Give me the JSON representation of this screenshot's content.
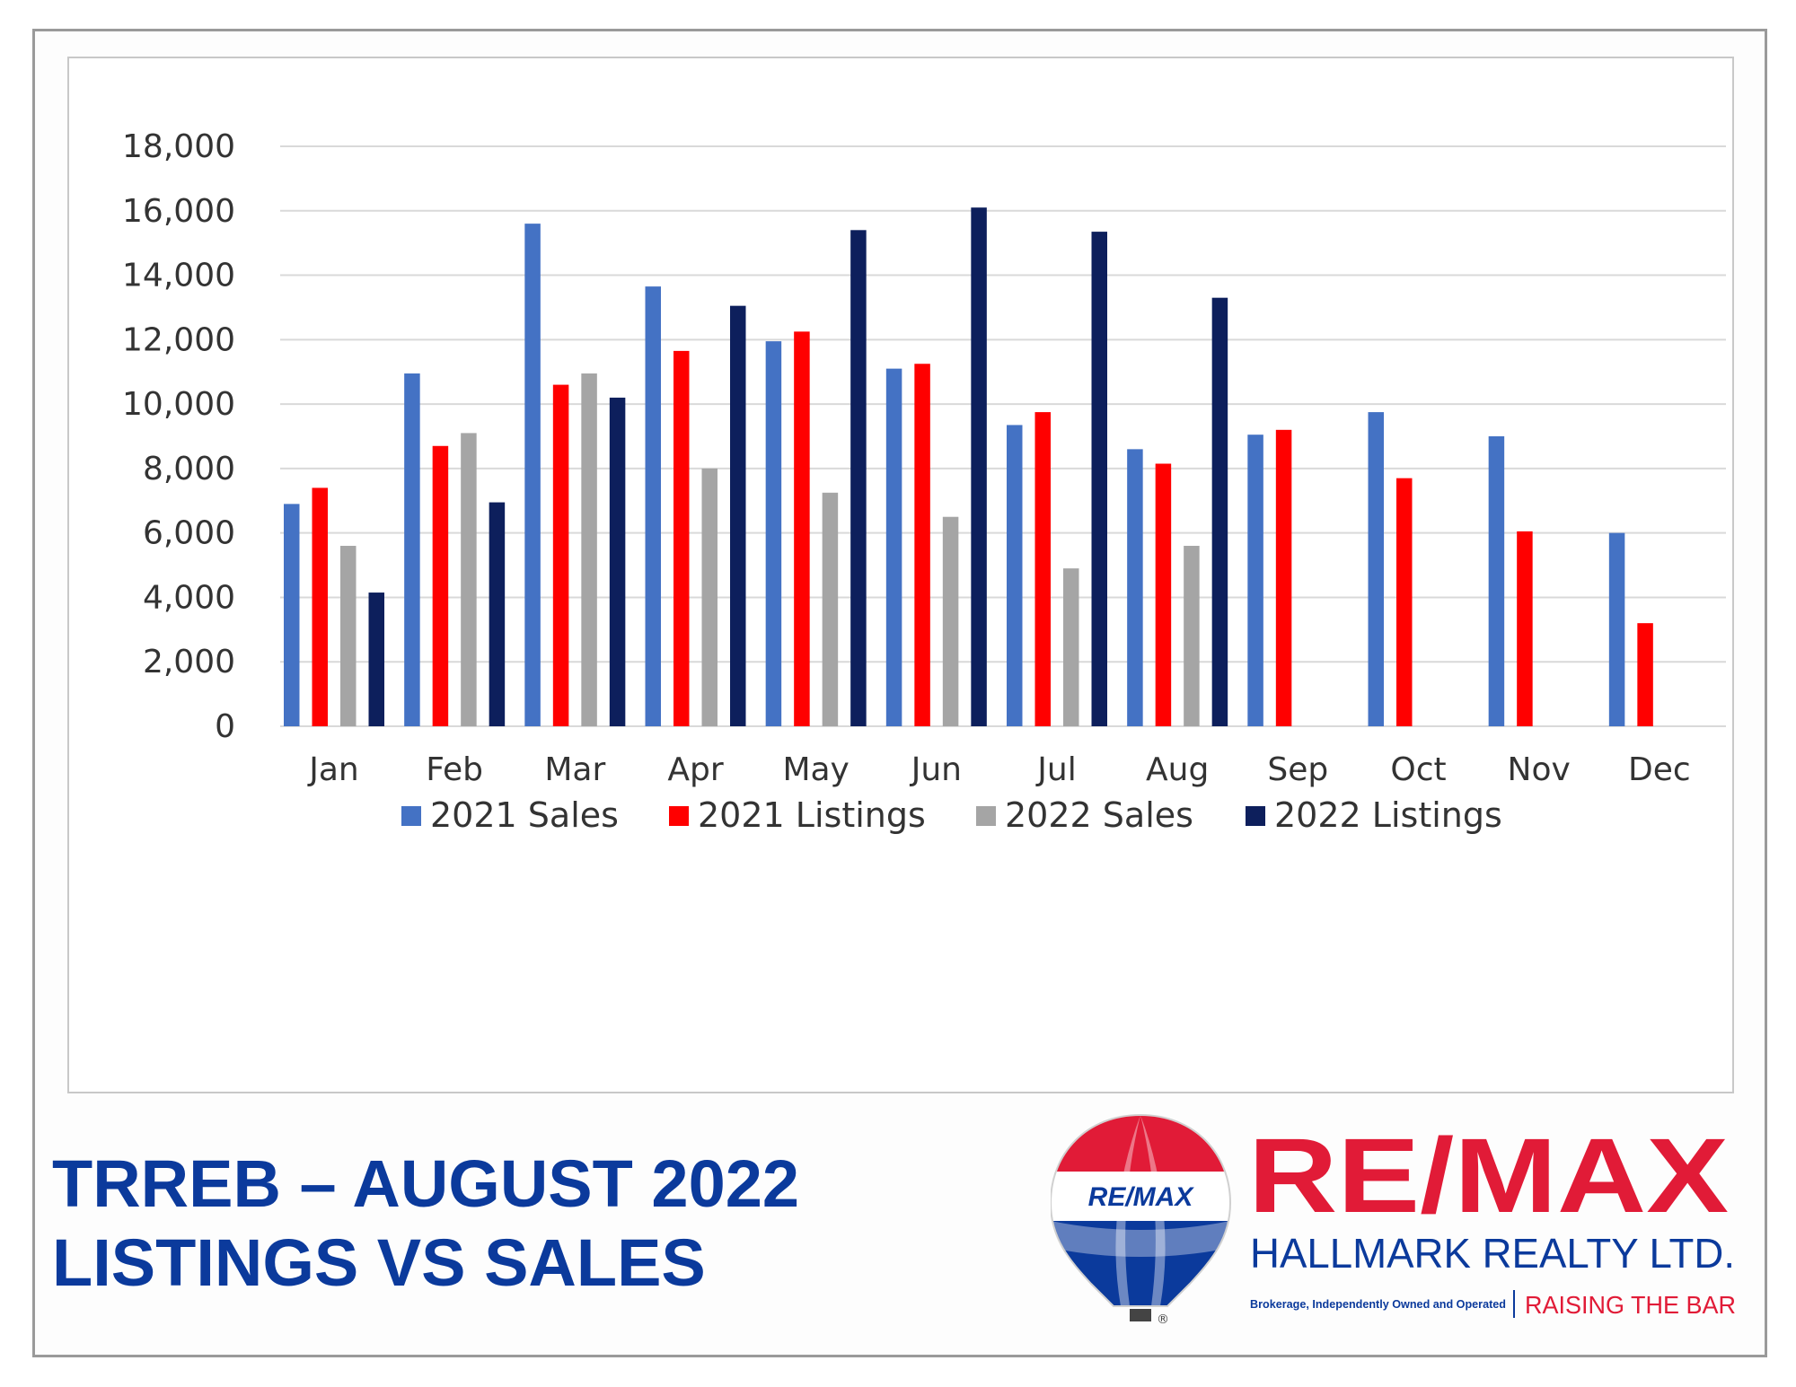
{
  "chart_data": {
    "type": "bar",
    "categories": [
      "Jan",
      "Feb",
      "Mar",
      "Apr",
      "May",
      "Jun",
      "Jul",
      "Aug",
      "Sep",
      "Oct",
      "Nov",
      "Dec"
    ],
    "series": [
      {
        "name": "2021 Sales",
        "color": "#4472c4",
        "values": [
          6900,
          10950,
          15600,
          13650,
          11950,
          11100,
          9350,
          8600,
          9050,
          9750,
          9000,
          6000
        ]
      },
      {
        "name": "2021 Listings",
        "color": "#ff0000",
        "values": [
          7400,
          8700,
          10600,
          11650,
          12250,
          11250,
          9750,
          8150,
          9200,
          7700,
          6050,
          3200
        ]
      },
      {
        "name": "2022 Sales",
        "color": "#a5a5a5",
        "values": [
          5600,
          9100,
          10950,
          8000,
          7250,
          6500,
          4900,
          5600,
          null,
          null,
          null,
          null
        ]
      },
      {
        "name": "2022 Listings",
        "color": "#0d1f5c",
        "values": [
          4150,
          6950,
          10200,
          13050,
          15400,
          16100,
          15350,
          13300,
          null,
          null,
          null,
          null
        ]
      }
    ],
    "ylim": [
      0,
      18000
    ],
    "yticks": [
      "0",
      "2,000",
      "4,000",
      "6,000",
      "8,000",
      "10,000",
      "12,000",
      "14,000",
      "16,000",
      "18,000"
    ],
    "grid": true,
    "legend": "bottom"
  },
  "headline": {
    "line1": "TRREB – AUGUST 2022",
    "line2": "LISTINGS VS SALES"
  },
  "logo": {
    "balloon_text": "RE/MAX",
    "brand": "RE/MAX",
    "company": "HALLMARK REALTY LTD.",
    "tagline": "Brokerage, Independently Owned and Operated",
    "slogan": "RAISING THE BAR",
    "registered_mark": "®",
    "colors": {
      "red": "#e11b37",
      "blue": "#0b3a9c"
    }
  }
}
